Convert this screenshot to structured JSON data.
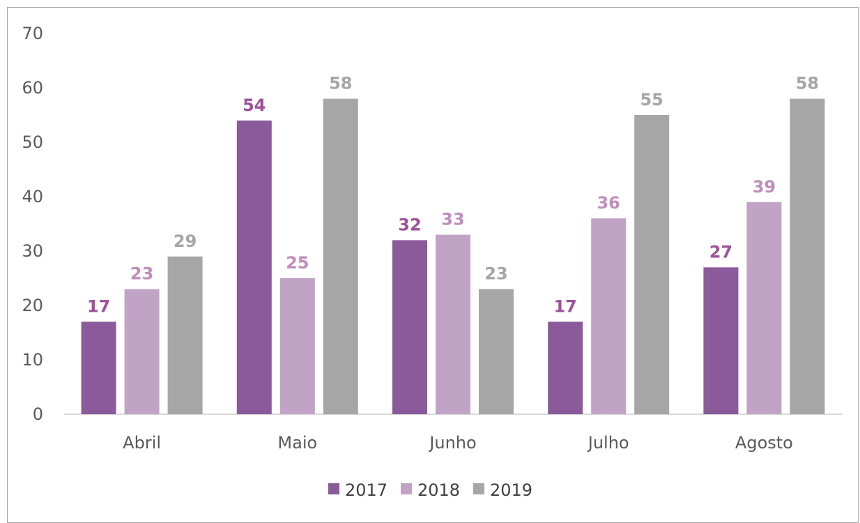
{
  "chart_data": {
    "type": "bar",
    "categories": [
      "Abril",
      "Maio",
      "Junho",
      "Julho",
      "Agosto"
    ],
    "series": [
      {
        "name": "2017",
        "values": [
          17,
          54,
          32,
          17,
          27
        ],
        "color": "#8a5a9b",
        "label_color": "#a0509a"
      },
      {
        "name": "2018",
        "values": [
          23,
          25,
          33,
          36,
          39
        ],
        "color": "#c1a3c5",
        "label_color": "#c08dbd"
      },
      {
        "name": "2019",
        "values": [
          29,
          58,
          23,
          55,
          58
        ],
        "color": "#a6a6a6",
        "label_color": "#a6a6a6"
      }
    ],
    "ylim": [
      0,
      70
    ],
    "yticks": [
      0,
      10,
      20,
      30,
      40,
      50,
      60,
      70
    ],
    "legend_position": "bottom",
    "grid": false
  }
}
